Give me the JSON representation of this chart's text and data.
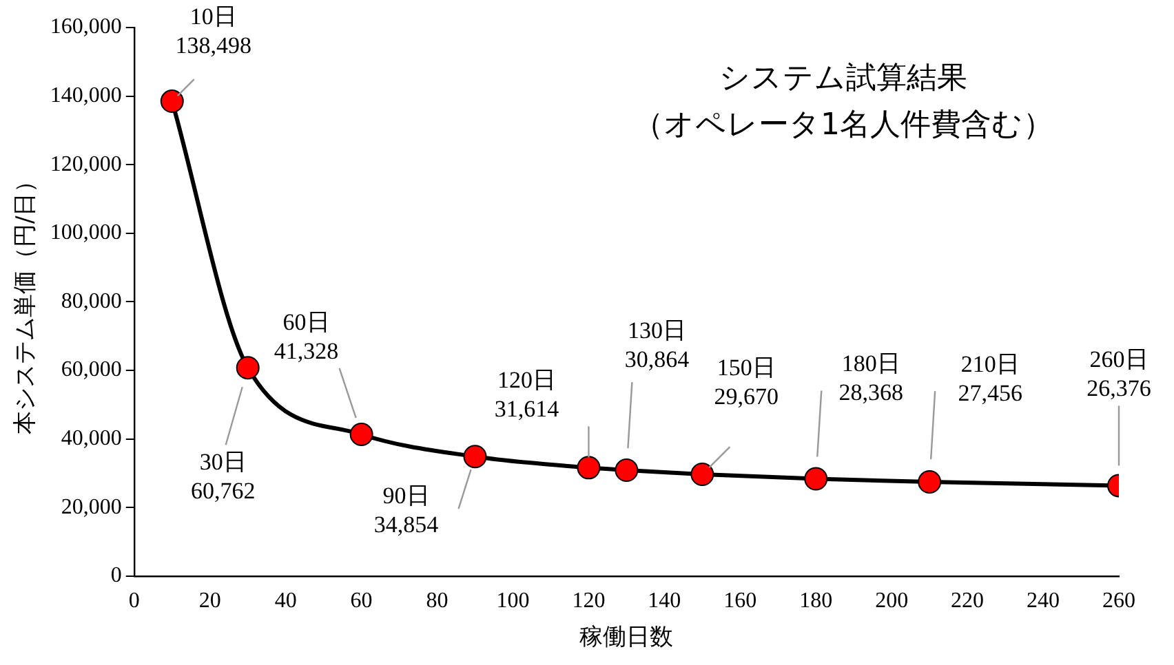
{
  "chart_data": {
    "type": "line",
    "title": "システム試算結果（オペレータ1名人件費含む）",
    "xlabel": "稼働日数",
    "ylabel": "本システム単価（円/日）",
    "x": [
      10,
      30,
      60,
      90,
      120,
      130,
      150,
      180,
      210,
      260
    ],
    "series": [
      {
        "color": "#000000",
        "colors": [
          "#ff0000",
          "#ff0000",
          "#ff0000",
          "#ff0000",
          "#ff0000",
          "#ff0000",
          "#ff0000",
          "#ff0000",
          "#ff0000",
          "#ff0000"
        ],
        "values": [
          138498,
          60762,
          41328,
          34854,
          31614,
          30864,
          29670,
          28368,
          27456,
          26376
        ],
        "value_labels": [
          "10日\n138,498",
          "30日\n60,762",
          "60日\n41,328",
          "90日\n34,854",
          "120日\n31,614",
          "130日\n30,864",
          "150日\n29,670",
          "180日\n28,368",
          "210日\n27,456",
          "260日\n26,376"
        ]
      }
    ],
    "xlim": [
      0,
      260
    ],
    "xticks": [
      0,
      20,
      40,
      60,
      80,
      100,
      120,
      140,
      160,
      180,
      200,
      220,
      240,
      260
    ],
    "ylim": [
      0,
      160000
    ],
    "yticks": [
      0,
      {
        "value": 20000,
        "label": "20,000"
      },
      {
        "value": 40000,
        "label": "40,000"
      },
      {
        "value": 60000,
        "label": "60,000"
      },
      {
        "value": 80000,
        "label": "80,000"
      },
      {
        "value": 100000,
        "label": "100,000"
      },
      {
        "value": 120000,
        "label": "120,000"
      },
      {
        "value": 140000,
        "label": "140,000"
      },
      {
        "value": 160000,
        "label": "160,000"
      }
    ],
    "grid": false,
    "legend": false,
    "marker": "circle",
    "line_style": "solid"
  }
}
